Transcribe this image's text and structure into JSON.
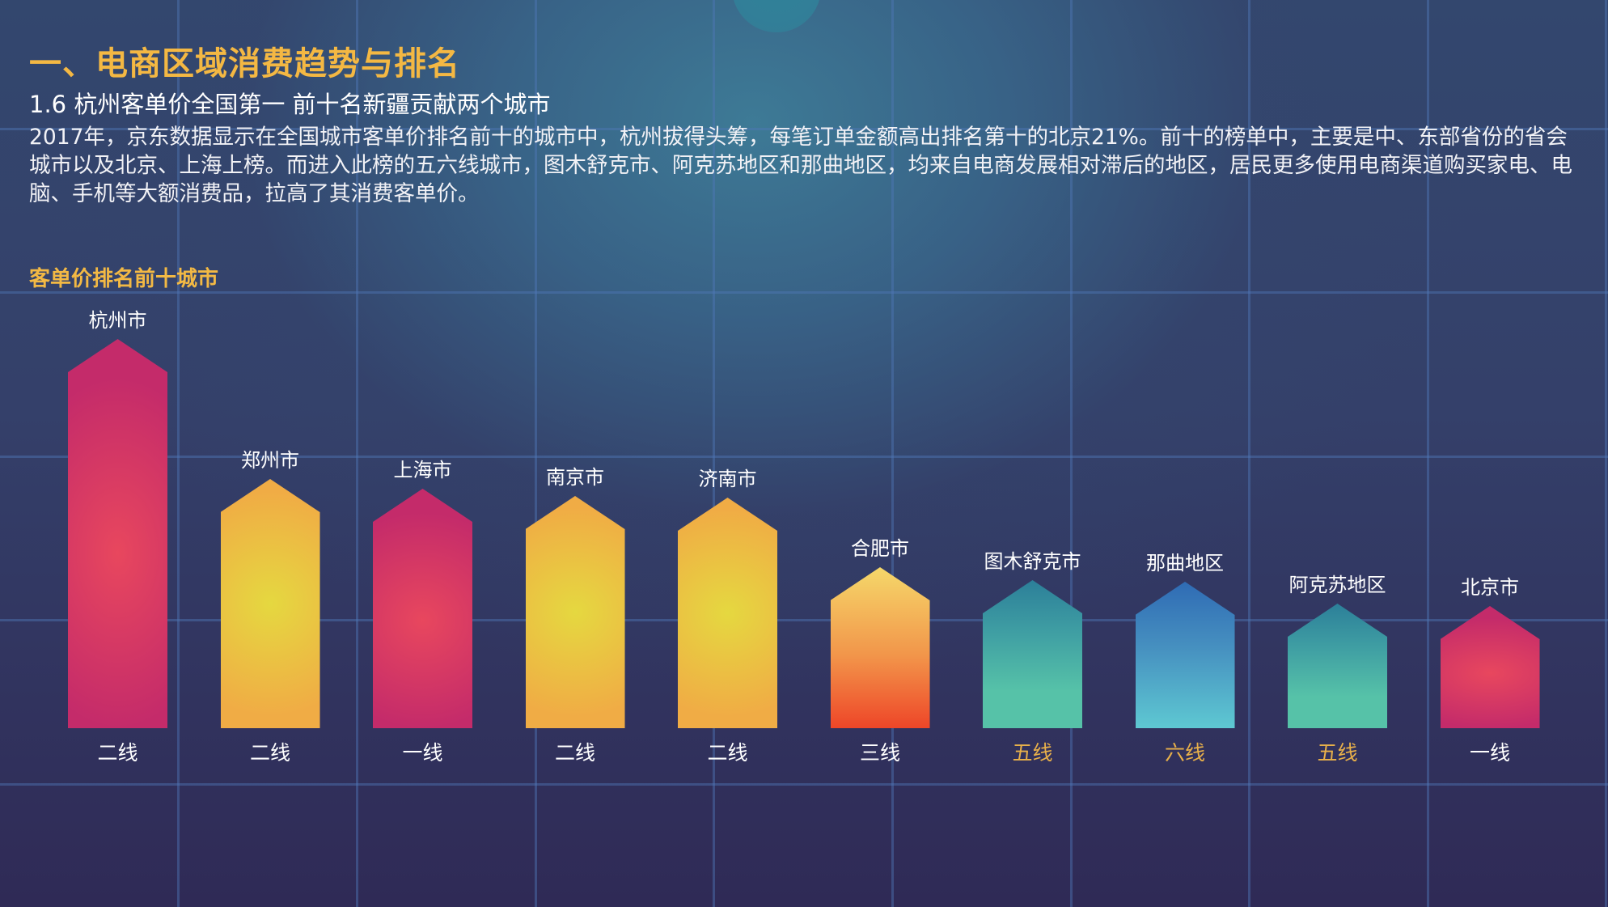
{
  "header": {
    "title": "一、电商区域消费趋势与排名",
    "subtitle": "1.6 杭州客单价全国第一 前十名新疆贡献两个城市",
    "paragraph": "2017年，京东数据显示在全国城市客单价排名前十的城市中，杭州拔得头筹，每笔订单金额高出排名第十的北京21%。前十的榜单中，主要是中、东部省份的省会城市以及北京、上海上榜。而进入此榜的五六线城市，图木舒克市、阿克苏地区和那曲地区，均来自电商发展相对滞后的地区，居民更多使用电商渠道购买家电、电脑、手机等大额消费品，拉高了其消费客单价。"
  },
  "colors": {
    "title": "#f4b843",
    "tier_highlight": "#e8b04a",
    "tier_normal": "#ffffff",
    "magenta_red": [
      "#e8475e",
      "#c42b6a"
    ],
    "yellow_orange": [
      "#e5d840",
      "#f0ac45"
    ],
    "orange_red": [
      "#f5d86a",
      "#ee4628"
    ],
    "teal_green": [
      "#2c7f99",
      "#56c2a8"
    ],
    "blue_cyan": [
      "#2f6bb4",
      "#5ec8d2"
    ]
  },
  "chart_data": {
    "type": "bar",
    "title": "客单价排名前十城市",
    "xlabel": "",
    "ylabel": "",
    "grid": false,
    "categories": [
      "杭州市",
      "郑州市",
      "上海市",
      "南京市",
      "济南市",
      "合肥市",
      "图木舒克市",
      "那曲地区",
      "阿克苏地区",
      "北京市"
    ],
    "tiers": [
      "二线",
      "二线",
      "一线",
      "二线",
      "二线",
      "三线",
      "五线",
      "六线",
      "五线",
      "一线"
    ],
    "values": [
      481,
      308,
      296,
      287,
      285,
      199,
      183,
      181,
      154,
      151
    ],
    "value_note": "relative bar heights in pixels (no numeric axis shown); rank 1 = 杭州市, rank 10 = 北京市",
    "rank": [
      1,
      2,
      3,
      4,
      5,
      6,
      7,
      8,
      9,
      10
    ],
    "bar_styles": [
      "magenta_red",
      "yellow_orange",
      "magenta_red",
      "yellow_orange",
      "yellow_orange",
      "orange_red",
      "teal_green",
      "blue_cyan",
      "teal_green",
      "magenta_red"
    ],
    "tier_highlighted": [
      false,
      false,
      false,
      false,
      false,
      false,
      true,
      true,
      true,
      false
    ]
  }
}
